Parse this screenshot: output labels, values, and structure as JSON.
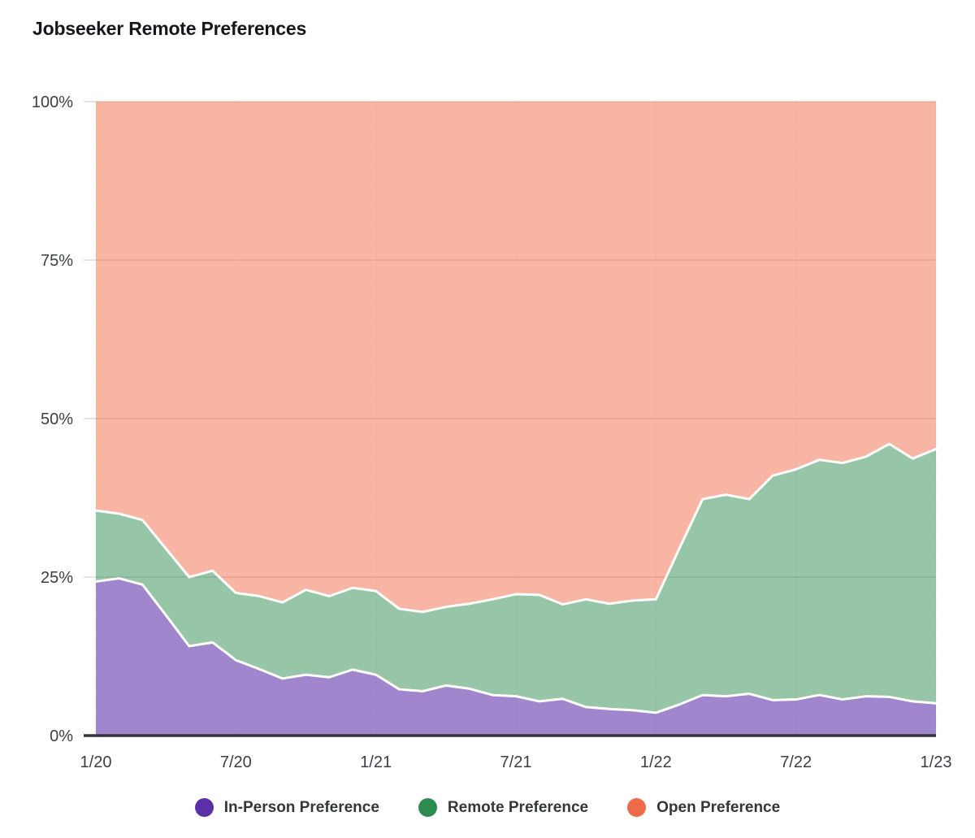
{
  "chart_data": {
    "type": "area",
    "stacked": true,
    "title": "Jobseeker Remote Preferences",
    "x": [
      "1/20",
      "2/20",
      "3/20",
      "4/20",
      "5/20",
      "6/20",
      "7/20",
      "8/20",
      "9/20",
      "10/20",
      "11/20",
      "12/20",
      "1/21",
      "2/21",
      "3/21",
      "4/21",
      "5/21",
      "6/21",
      "7/21",
      "8/21",
      "9/21",
      "10/21",
      "11/21",
      "12/21",
      "1/22",
      "2/22",
      "3/22",
      "4/22",
      "5/22",
      "6/22",
      "7/22",
      "8/22",
      "9/22",
      "10/22",
      "11/22",
      "12/22",
      "1/23"
    ],
    "x_tick_labels": [
      "1/20",
      "7/20",
      "1/21",
      "7/21",
      "1/22",
      "7/22",
      "1/23"
    ],
    "y_ticks": [
      "0%",
      "25%",
      "50%",
      "75%",
      "100%"
    ],
    "y_gridline_values": [
      25,
      50,
      75,
      100
    ],
    "ylim": [
      0,
      100
    ],
    "unit": "%",
    "legend_position": "bottom",
    "grid": {
      "horizontal": true,
      "vertical": "dashed"
    },
    "colors": {
      "title": "#15171c",
      "tick_label": "#3a3f46",
      "gridline": "#d9d9d9",
      "vertical_gridline": "#e3e3e3",
      "axis_line": "#35323e",
      "boundary_line": "#ffffff",
      "legend_text": "#33373d"
    },
    "series": [
      {
        "name": "In-Person Preference",
        "color": "#5B2FA8",
        "fill": "rgba(91,47,168,0.58)",
        "values": [
          24.3,
          24.8,
          23.8,
          19.0,
          14.1,
          14.7,
          11.9,
          10.5,
          9.0,
          9.6,
          9.2,
          10.4,
          9.6,
          7.3,
          7.0,
          7.9,
          7.4,
          6.4,
          6.2,
          5.4,
          5.8,
          4.5,
          4.2,
          4.0,
          3.6,
          4.9,
          6.4,
          6.2,
          6.6,
          5.6,
          5.7,
          6.4,
          5.7,
          6.2,
          6.1,
          5.4,
          5.1
        ]
      },
      {
        "name": "Remote Preference",
        "color": "#2E8B50",
        "fill": "rgba(46,139,80,0.50)",
        "values": [
          11.2,
          10.2,
          10.2,
          10.5,
          10.9,
          11.3,
          10.6,
          11.5,
          12.0,
          13.4,
          12.8,
          12.9,
          13.2,
          12.7,
          12.5,
          12.4,
          13.4,
          15.1,
          16.1,
          16.8,
          14.9,
          17.0,
          16.6,
          17.3,
          17.9,
          24.6,
          30.9,
          31.8,
          30.7,
          35.4,
          36.3,
          37.1,
          37.3,
          37.8,
          39.9,
          38.3,
          40.1
        ]
      },
      {
        "name": "Open Preference",
        "color": "#EE6B4A",
        "fill": "rgba(242,108,73,0.50)",
        "values": [
          64.5,
          65.0,
          66.0,
          70.5,
          75.0,
          74.0,
          77.5,
          78.0,
          79.0,
          77.0,
          78.0,
          76.7,
          77.2,
          80.0,
          80.5,
          79.7,
          79.2,
          78.5,
          77.7,
          77.8,
          79.3,
          78.5,
          79.2,
          78.7,
          78.5,
          70.5,
          62.7,
          62.0,
          62.7,
          59.0,
          58.0,
          56.5,
          57.0,
          56.0,
          54.0,
          56.3,
          54.8
        ]
      }
    ]
  }
}
